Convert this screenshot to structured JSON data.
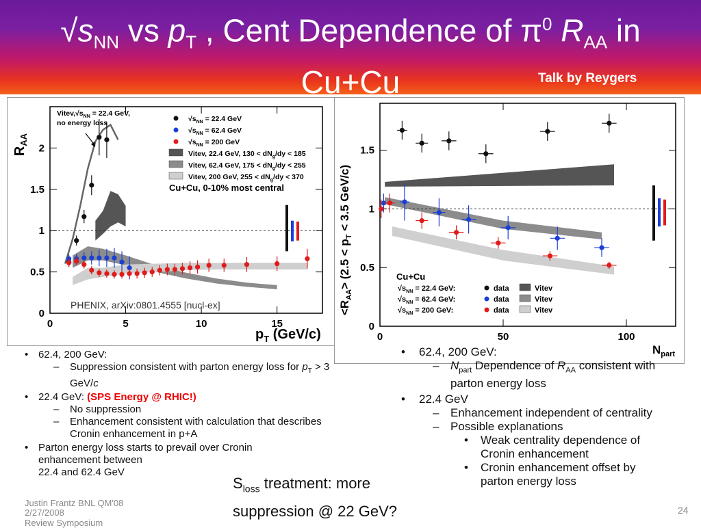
{
  "title": {
    "sqrt": "√",
    "s": "s",
    "nn": "NN",
    "vs": " vs  ",
    "p": "p",
    "t": "T",
    "rest": " , Cent Dependence of π",
    "zero": "0",
    "r": "R",
    "aa": "AA",
    "in": " in",
    "line2": "Cu+Cu"
  },
  "talk_by": "Talk by Reygers",
  "chart_data": [
    {
      "type": "scatter",
      "ylabel_main": "R",
      "ylabel_sub": "AA",
      "xlabel_main": "p",
      "xlabel_sub": "T",
      "xlabel_rest": " (GeV/c)",
      "xlim": [
        0,
        18
      ],
      "ylim": [
        0,
        2.5
      ],
      "xticks": [
        "0",
        "5",
        "10",
        "15"
      ],
      "yticks": [
        "0",
        "0.5",
        "1",
        "1.5",
        "2"
      ],
      "annotation_arrow": [
        "Vitev,√s",
        "NN",
        " = 22.4 GeV,",
        "no energy loss"
      ],
      "source": "PHENIX, arXiv:0801.4555 [nucl-ex]",
      "legend": [
        {
          "marker": "dot",
          "color": "#111111",
          "label": "√s",
          "sub": "NN",
          "rest": " = 22.4 GeV"
        },
        {
          "marker": "dot",
          "color": "#1a3fd6",
          "label": "√s",
          "sub": "NN",
          "rest": " = 62.4 GeV"
        },
        {
          "marker": "dot",
          "color": "#e01b1b",
          "label": "√s",
          "sub": "NN",
          "rest": " = 200 GeV"
        },
        {
          "marker": "box",
          "color": "#555555",
          "label": "Vitev, 22.4 GeV, 130 < dN",
          "sub": "g",
          "rest": "/dy < 185"
        },
        {
          "marker": "box",
          "color": "#8c8c8c",
          "label": "Vitev, 62.4 GeV, 175 < dN",
          "sub": "g",
          "rest": "/dy < 255"
        },
        {
          "marker": "box",
          "color": "#cfcfcf",
          "label": "Vitev, 200 GeV, 255 < dN",
          "sub": "g",
          "rest": "/dy < 370"
        }
      ],
      "legend_caption": "Cu+Cu, 0-10% most central",
      "series": [
        {
          "name": "√sNN = 22.4 GeV",
          "color": "#111111",
          "x": [
            1.25,
            1.75,
            2.25,
            2.75,
            3.25,
            3.75
          ],
          "y": [
            0.62,
            0.88,
            1.17,
            1.55,
            2.13,
            2.1
          ],
          "err": [
            0.06,
            0.06,
            0.08,
            0.12,
            0.22,
            0.22
          ]
        },
        {
          "name": "√sNN = 62.4 GeV",
          "color": "#1a3fd6",
          "x": [
            1.25,
            1.75,
            2.25,
            2.75,
            3.25,
            3.75,
            4.25,
            4.75,
            5.25
          ],
          "y": [
            0.66,
            0.66,
            0.67,
            0.67,
            0.67,
            0.67,
            0.67,
            0.62,
            0.55
          ],
          "err": [
            0.05,
            0.06,
            0.07,
            0.08,
            0.1,
            0.11,
            0.12,
            0.13,
            0.14
          ]
        },
        {
          "name": "√sNN = 200 GeV",
          "color": "#e01b1b",
          "x": [
            1.25,
            1.75,
            2.25,
            2.75,
            3.25,
            3.75,
            4.25,
            4.75,
            5.25,
            5.75,
            6.25,
            6.75,
            7.25,
            7.75,
            8.25,
            8.75,
            9.25,
            9.75,
            10.5,
            11.5,
            13.0,
            15.0,
            17.0
          ],
          "y": [
            0.61,
            0.63,
            0.59,
            0.52,
            0.49,
            0.48,
            0.47,
            0.47,
            0.48,
            0.48,
            0.49,
            0.5,
            0.52,
            0.53,
            0.53,
            0.54,
            0.55,
            0.56,
            0.58,
            0.58,
            0.59,
            0.6,
            0.66
          ],
          "err": [
            0.05,
            0.05,
            0.05,
            0.05,
            0.05,
            0.05,
            0.05,
            0.05,
            0.05,
            0.06,
            0.06,
            0.06,
            0.06,
            0.07,
            0.07,
            0.07,
            0.08,
            0.08,
            0.08,
            0.08,
            0.09,
            0.09,
            0.12
          ]
        }
      ],
      "bands": [
        {
          "name": "Vitev, 22.4 GeV",
          "color": "#555555",
          "x": [
            3.0,
            3.5,
            4.0,
            4.5,
            5.0
          ],
          "lo": [
            0.88,
            0.96,
            1.05,
            1.1,
            1.05
          ],
          "hi": [
            1.12,
            1.24,
            1.48,
            1.44,
            1.3
          ]
        },
        {
          "name": "Vitev, 62.4 GeV",
          "color": "#8c8c8c",
          "x": [
            1.5,
            2.5,
            3.5,
            5.0,
            7.0,
            9.0,
            11.0,
            13.0,
            15.0
          ],
          "lo": [
            0.55,
            0.64,
            0.64,
            0.58,
            0.5,
            0.42,
            0.36,
            0.32,
            0.29
          ],
          "hi": [
            0.7,
            0.81,
            0.78,
            0.7,
            0.58,
            0.49,
            0.42,
            0.37,
            0.34
          ]
        },
        {
          "name": "Vitev, 200 GeV",
          "color": "#cfcfcf",
          "x": [
            1.5,
            2.5,
            3.5,
            5.0,
            7.0,
            9.0,
            11.0,
            13.0,
            15.0,
            17.0
          ],
          "lo": [
            0.34,
            0.41,
            0.44,
            0.48,
            0.5,
            0.52,
            0.53,
            0.53,
            0.53,
            0.53
          ],
          "hi": [
            0.44,
            0.55,
            0.55,
            0.59,
            0.6,
            0.61,
            0.61,
            0.61,
            0.61,
            0.61
          ]
        }
      ],
      "curve_no_eloss": {
        "x": [
          1.0,
          1.5,
          2.0,
          2.5,
          3.0,
          3.5,
          4.0,
          4.5
        ],
        "y": [
          0.6,
          0.9,
          1.3,
          1.75,
          2.08,
          2.22,
          2.28,
          2.1
        ]
      },
      "reference_line": 1.0,
      "sys_bars": [
        {
          "color": "#111111",
          "y_lo": 0.75,
          "y_hi": 1.31
        },
        {
          "color": "#1a3fd6",
          "y_lo": 0.87,
          "y_hi": 1.12
        },
        {
          "color": "#e01b1b",
          "y_lo": 0.88,
          "y_hi": 1.11
        }
      ]
    },
    {
      "type": "scatter",
      "ylabel": "<R",
      "ylabel_sub": "AA",
      "ylabel_rest": "> (2.5 < p",
      "ylabel_sub2": "T",
      "ylabel_rest2": " < 3.5 GeV/c)",
      "xlabel_main": "N",
      "xlabel_sub": "part",
      "xlim": [
        0,
        120
      ],
      "ylim": [
        0,
        1.9
      ],
      "xticks": [
        "0",
        "50",
        "100"
      ],
      "yticks": [
        "0",
        "0.5",
        "1",
        "1.5"
      ],
      "legend_title": "Cu+Cu",
      "legend": [
        {
          "label": "√s",
          "sub": "NN",
          "rest": " = 22.4 GeV:",
          "marker_color": "#111111",
          "marker_label": "data",
          "band_color": "#555555",
          "band_label": "Vitev"
        },
        {
          "label": "√s",
          "sub": "NN",
          "rest": " = 62.4 GeV:",
          "marker_color": "#1a3fd6",
          "marker_label": "data",
          "band_color": "#8c8c8c",
          "band_label": "Vitev"
        },
        {
          "label": "√s",
          "sub": "NN",
          "rest": " = 200 GeV:",
          "marker_color": "#e01b1b",
          "marker_label": "data",
          "band_color": "#cfcfcf",
          "band_label": "Vitev"
        }
      ],
      "series": [
        {
          "name": "√sNN = 22.4 GeV",
          "color": "#111111",
          "x": [
            9,
            17,
            28,
            43,
            68,
            93
          ],
          "y": [
            1.67,
            1.56,
            1.58,
            1.47,
            1.66,
            1.73
          ],
          "err": [
            0.08,
            0.08,
            0.08,
            0.08,
            0.08,
            0.08
          ],
          "xerr": [
            2,
            2.5,
            3,
            3,
            3,
            3
          ]
        },
        {
          "name": "√sNN = 62.4 GeV",
          "color": "#1a3fd6",
          "x": [
            1.5,
            10,
            24,
            36,
            52,
            72,
            90
          ],
          "y": [
            1.05,
            1.06,
            0.97,
            0.91,
            0.84,
            0.75,
            0.67
          ],
          "err": [
            0.08,
            0.16,
            0.12,
            0.12,
            0.1,
            0.1,
            0.08
          ],
          "xerr": [
            1,
            2,
            2.5,
            3,
            3,
            3,
            3
          ]
        },
        {
          "name": "√sNN = 200 GeV",
          "color": "#e01b1b",
          "x": [
            0.5,
            4,
            17,
            31,
            48,
            69,
            93
          ],
          "y": [
            1.0,
            1.05,
            0.9,
            0.8,
            0.71,
            0.6,
            0.52
          ],
          "err": [
            0.08,
            0.08,
            0.07,
            0.06,
            0.05,
            0.04,
            0.03
          ],
          "xerr": [
            1,
            2,
            2.5,
            3,
            3,
            3,
            3
          ]
        }
      ],
      "bands": [
        {
          "name": "Vitev 22.4 GeV",
          "color": "#555555",
          "x": [
            2,
            95
          ],
          "lo": [
            1.19,
            1.2
          ],
          "hi": [
            1.23,
            1.38
          ]
        },
        {
          "name": "Vitev 62.4 GeV",
          "color": "#8c8c8c",
          "x": [
            2,
            50,
            90
          ],
          "lo": [
            1.04,
            0.83,
            0.74
          ],
          "hi": [
            1.1,
            0.9,
            0.8
          ]
        },
        {
          "name": "Vitev 200 GeV",
          "color": "#cfcfcf",
          "x": [
            5,
            50,
            95
          ],
          "lo": [
            0.77,
            0.56,
            0.44
          ],
          "hi": [
            0.85,
            0.65,
            0.51
          ]
        }
      ],
      "reference_line": 1.0,
      "sys_bars": [
        {
          "color": "#111111",
          "y_lo": 0.73,
          "y_hi": 1.2
        },
        {
          "color": "#1a3fd6",
          "y_lo": 0.85,
          "y_hi": 1.09
        },
        {
          "color": "#e01b1b",
          "y_lo": 0.86,
          "y_hi": 1.08
        }
      ]
    }
  ],
  "left_bullets": {
    "b1": "62.4, 200 GeV:",
    "b1a": "Suppression consistent with parton energy loss for ",
    "b1a_p": "p",
    "b1a_t": "T",
    "b1a_rest": " > 3 GeV/",
    "b1a_c": "c",
    "b2": "22.4 GeV:   ",
    "b2_red": "(SPS Energy @ RHIC!)",
    "b2a": "No suppression",
    "b2b": "Enhancement consistent with calculation that describes Cronin enhancement in p+A",
    "b3": "Parton energy loss starts to prevail over Cronin enhancement between",
    "b3b": "22.4 and 62.4 GeV"
  },
  "right_bullets": {
    "b1": "62.4, 200 GeV:",
    "b1a_n": "N",
    "b1a_part": "part",
    "b1a_rest": " Dependence of ",
    "b1a_r": "R",
    "b1a_aa": "AA",
    "b1a_end": " consistent with parton energy loss",
    "b2": "22.4 GeV",
    "b2a": "Enhancement independent of centrality",
    "b2b": "Possible explanations",
    "b2b1": "Weak centrality dependence of Cronin enhancement",
    "b2b2": "Cronin enhancement offset by parton energy loss"
  },
  "sloss": {
    "s": "S",
    "sub": "loss",
    "line1": " treatment: more",
    "line2": "suppression @ 22 GeV?"
  },
  "footer": {
    "line1": "Justin Frantz BNL QM'08",
    "line2": "Review Symposium",
    "date": "2/27/2008",
    "page": "24"
  }
}
